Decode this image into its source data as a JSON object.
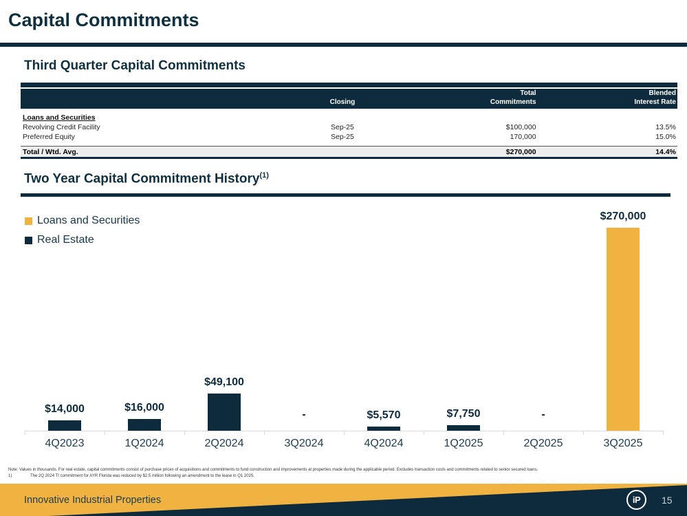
{
  "slide": {
    "title": "Capital Commitments",
    "footer_company": "Innovative Industrial Properties",
    "page_number": "15",
    "logo_text": "iP"
  },
  "colors": {
    "navy": "#0E2B3D",
    "orange": "#F0B342",
    "total_row_bg": "#EDEDED",
    "axis_line": "#D9D9D9",
    "footer_bg": "#F0B342"
  },
  "table_section": {
    "heading": "Third Quarter Capital Commitments",
    "header": {
      "closing": "Closing",
      "total_line1": "Total",
      "total_line2": "Commitments",
      "blended_line1": "Blended",
      "blended_line2": "Interest Rate"
    },
    "group_label": "Loans and Securities",
    "rows": [
      {
        "label": "Revolving Credit Facility",
        "closing": "Sep-25",
        "commitments": "$100,000",
        "rate": "13.5%"
      },
      {
        "label": "Preferred Equity",
        "closing": "Sep-25",
        "commitments": "170,000",
        "rate": "15.0%"
      }
    ],
    "total_row": {
      "label": "Total / Wtd. Avg.",
      "closing": "",
      "commitments": "$270,000",
      "rate": "14.4%"
    }
  },
  "chart_section": {
    "heading": "Two Year Capital Commitment History",
    "heading_superscript": "(1)",
    "legend": [
      {
        "label": "Loans and Securities",
        "color": "#F0B342"
      },
      {
        "label": "Real Estate",
        "color": "#0E2B3D"
      }
    ],
    "chart_data": {
      "type": "bar",
      "title": "Two Year Capital Commitment History",
      "units": "USD thousands",
      "categories": [
        "4Q2023",
        "1Q2024",
        "2Q2024",
        "3Q2024",
        "4Q2024",
        "1Q2025",
        "2Q2025",
        "3Q2025"
      ],
      "series": [
        {
          "name": "Loans and Securities",
          "color": "#F0B342",
          "values": [
            0,
            0,
            0,
            0,
            0,
            0,
            0,
            270000
          ]
        },
        {
          "name": "Real Estate",
          "color": "#0E2B3D",
          "values": [
            14000,
            16000,
            49100,
            0,
            5570,
            7750,
            0,
            0
          ]
        }
      ],
      "bar_labels": [
        "$14,000",
        "$16,000",
        "$49,100",
        "-",
        "$5,570",
        "$7,750",
        "-",
        "$270,000"
      ],
      "ylim": [
        0,
        280000
      ],
      "grid": false,
      "legend_position": "top-left",
      "xlabel": "",
      "ylabel": ""
    }
  },
  "footnotes": {
    "note": "Note: Values in thousands. For real estate, capital commitments consist of purchase prices of acquisitions and commitments to fund construction and improvements at properties made during the applicable period. Excludes transaction costs and commitments related to senior secured loans.",
    "item1_num": "1)",
    "item1_text": "The 2Q 2024 TI commitment for AYR Florida was reduced by $2.5 million following an amendment to the lease in Q1 2025."
  }
}
